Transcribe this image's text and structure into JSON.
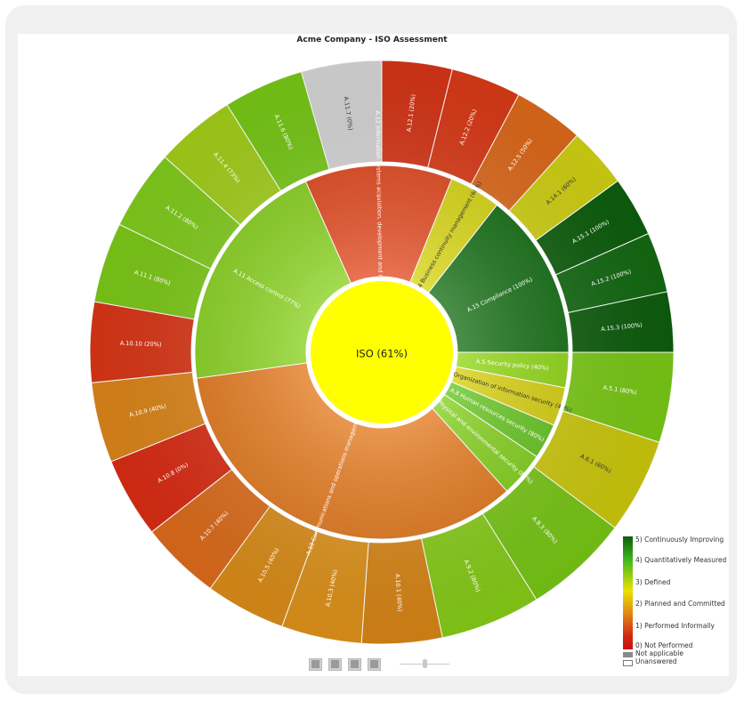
{
  "chart_data": {
    "type": "sunburst",
    "title": "Acme Company - ISO Assessment",
    "center": {
      "label": "ISO (61%)",
      "color": "#ffff00"
    },
    "inner": [
      {
        "label": "A.5 Security policy (40%)",
        "start": 90,
        "end": 101,
        "color": "#8ed60f"
      },
      {
        "label": "A.6 Organization of information security (40%)",
        "start": 101,
        "end": 113,
        "color": "#d7cf0a"
      },
      {
        "label": "A.8 Human resources security (80%)",
        "start": 113,
        "end": 124,
        "color": "#63c41c"
      },
      {
        "label": "A.9 Physical and environmental security (80%)",
        "start": 124,
        "end": 138,
        "color": "#7fcf16"
      },
      {
        "label": "A.10 Communications and operations management (51%)",
        "start": 138,
        "end": 262,
        "color": "#e37618"
      },
      {
        "label": "A.11 Access control (77%)",
        "start": 262,
        "end": 336,
        "color": "#86d11a"
      },
      {
        "label": "A.12 Information systems acquisition, development and maintenance (25%)",
        "start": 336,
        "end": 22,
        "color": "#e2451a"
      },
      {
        "label": "A.14 Business continuity management (60%)",
        "start": 22,
        "end": 38,
        "color": "#d8d60e"
      },
      {
        "label": "A.15 Compliance (100%)",
        "start": 38,
        "end": 90,
        "color": "#0f6b0f"
      }
    ],
    "outer": [
      {
        "label": "A.5.1 (80%)",
        "start": 90,
        "end": 108,
        "color": "#7bcc15"
      },
      {
        "label": "A.6.1 (60%)",
        "start": 108,
        "end": 127,
        "color": "#cfcb0c"
      },
      {
        "label": "A.8.3 (80%)",
        "start": 127,
        "end": 148,
        "color": "#79c915"
      },
      {
        "label": "A.9.2 (80%)",
        "start": 148,
        "end": 168,
        "color": "#88cf18"
      },
      {
        "label": "A.10.1 (40%)",
        "start": 168,
        "end": 184,
        "color": "#db8716"
      },
      {
        "label": "A.10.3 (40%)",
        "start": 184,
        "end": 200,
        "color": "#e2941a"
      },
      {
        "label": "A.10.5 (40%)",
        "start": 200,
        "end": 216,
        "color": "#de8e18"
      },
      {
        "label": "A.10.7 (40%)",
        "start": 216,
        "end": 232,
        "color": "#e06d1b"
      },
      {
        "label": "A.10.8 (0%)",
        "start": 232,
        "end": 248,
        "color": "#dd2c13"
      },
      {
        "label": "A.10.9 (40%)",
        "start": 248,
        "end": 264,
        "color": "#e08719"
      },
      {
        "label": "A.10.10 (20%)",
        "start": 264,
        "end": 280,
        "color": "#dd3616"
      },
      {
        "label": "A.11.1 (80%)",
        "start": 280,
        "end": 296,
        "color": "#7dcc17"
      },
      {
        "label": "A.11.2 (80%)",
        "start": 296,
        "end": 312,
        "color": "#82cf1c"
      },
      {
        "label": "A.11.4 (73%)",
        "start": 312,
        "end": 328,
        "color": "#a5d21a"
      },
      {
        "label": "A.11.6 (80%)",
        "start": 328,
        "end": 344,
        "color": "#79cb16"
      },
      {
        "label": "A.11.7 (0%)",
        "start": 344,
        "end": 360,
        "color": "#d9d9d9"
      },
      {
        "label": "A.12.1 (20%)",
        "start": 0,
        "end": 14,
        "color": "#d93516"
      },
      {
        "label": "A.12.2 (20%)",
        "start": 14,
        "end": 28,
        "color": "#dd3a16"
      },
      {
        "label": "A.12.5 (50%)",
        "start": 28,
        "end": 42,
        "color": "#e06a1a"
      },
      {
        "label": "A.14.1 (60%)",
        "start": 42,
        "end": 54,
        "color": "#d3d312"
      },
      {
        "label": "A.15.1 (100%)",
        "start": 54,
        "end": 66,
        "color": "#0d5f0d"
      },
      {
        "label": "A.15.2 (100%)",
        "start": 66,
        "end": 78,
        "color": "#136b13"
      },
      {
        "label": "A.15.3 (100%)",
        "start": 78,
        "end": 90,
        "color": "#0e5e0e"
      }
    ],
    "legend": [
      {
        "label": "5) Continuously Improving"
      },
      {
        "label": "4) Quantitatively Measured"
      },
      {
        "label": "3) Defined"
      },
      {
        "label": "2) Planned and Committed"
      },
      {
        "label": "1) Performed Informally"
      },
      {
        "label": "0) Not Performed"
      },
      {
        "label": "Not applicable",
        "color": "#8a8a8a"
      },
      {
        "label": "Unanswered",
        "color": "#ffffff"
      }
    ]
  },
  "controls": {
    "icons": [
      "play-icon",
      "grid-icon",
      "zoom-icon",
      "fit-icon"
    ]
  }
}
